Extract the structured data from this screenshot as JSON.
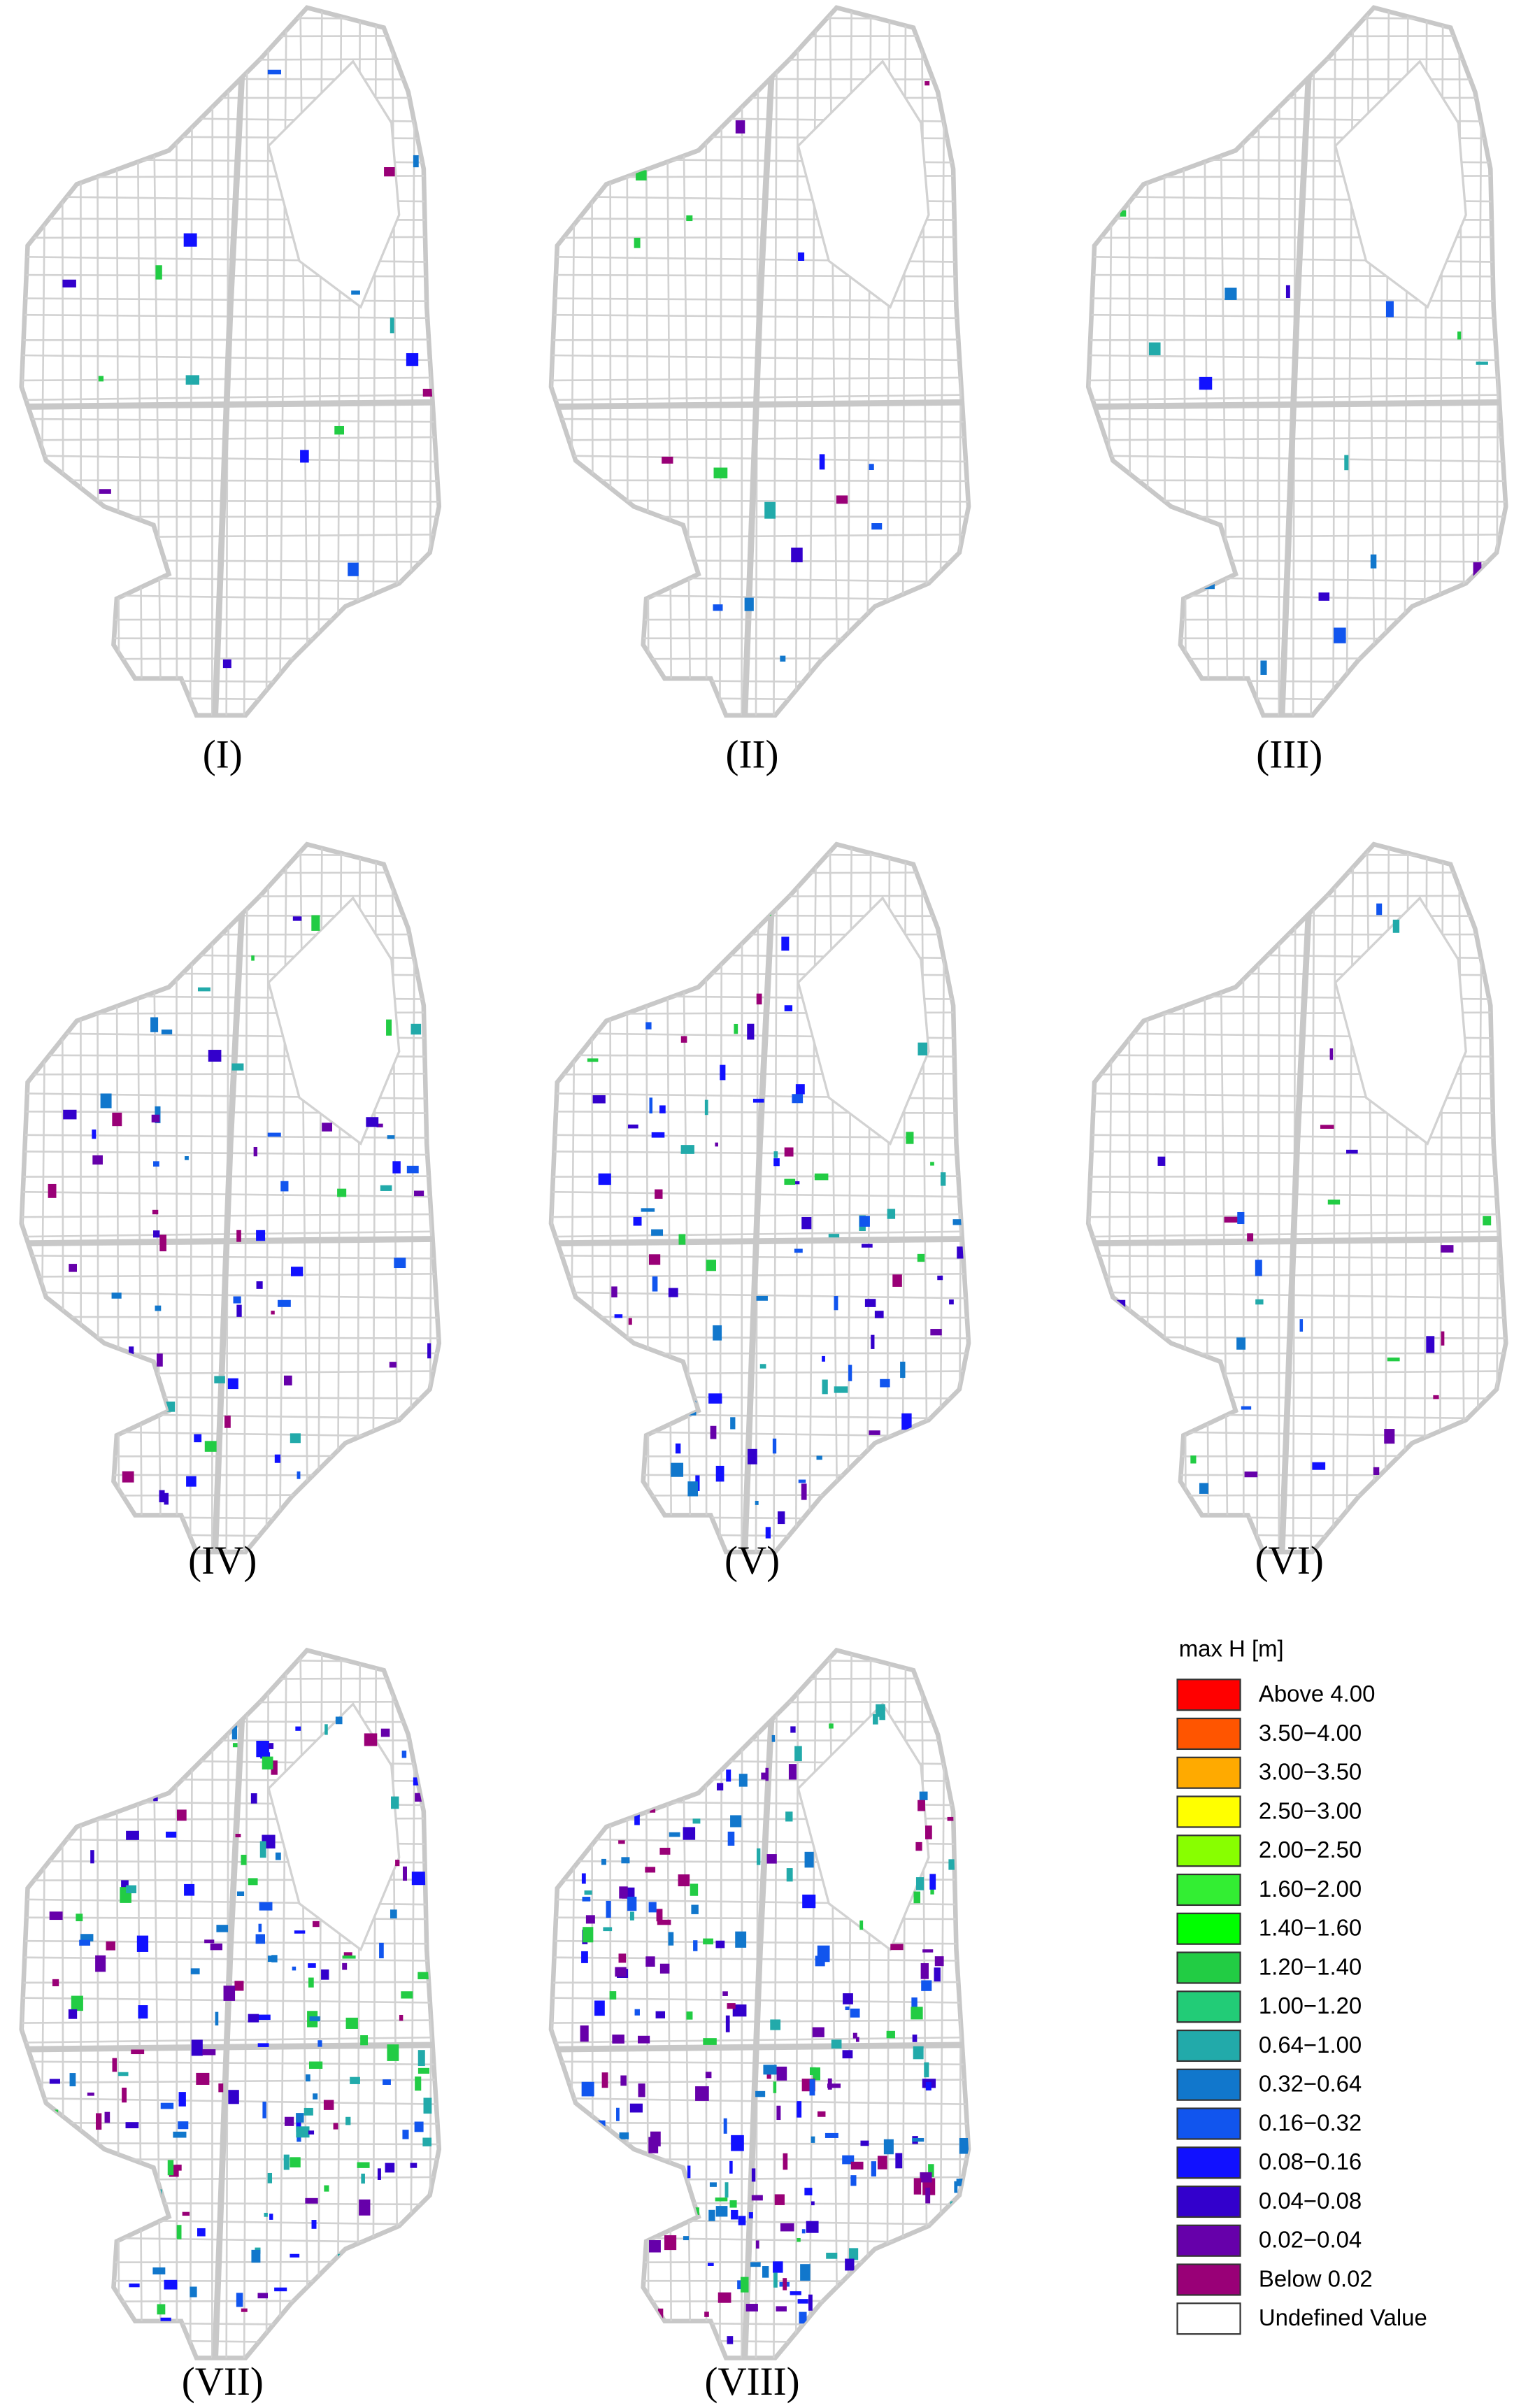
{
  "panels": [
    {
      "label": "(I)"
    },
    {
      "label": "(II)"
    },
    {
      "label": "(III)"
    },
    {
      "label": "(IV)"
    },
    {
      "label": "(V)"
    },
    {
      "label": "(VI)"
    },
    {
      "label": "(VII)"
    },
    {
      "label": "(VIII)"
    }
  ],
  "legend": {
    "title": "max H [m]",
    "items": [
      {
        "label": "Above 4.00",
        "color": "#ff0000"
      },
      {
        "label": "3.50−4.00",
        "color": "#ff5500"
      },
      {
        "label": "3.00−3.50",
        "color": "#ffaa00"
      },
      {
        "label": "2.50−3.00",
        "color": "#ffff00"
      },
      {
        "label": "2.00−2.50",
        "color": "#88ff00"
      },
      {
        "label": "1.60−2.00",
        "color": "#33ee33"
      },
      {
        "label": "1.40−1.60",
        "color": "#00ff00"
      },
      {
        "label": "1.20−1.40",
        "color": "#22cc44"
      },
      {
        "label": "1.00−1.20",
        "color": "#22cc77"
      },
      {
        "label": "0.64−1.00",
        "color": "#22aaaa"
      },
      {
        "label": "0.32−0.64",
        "color": "#1177cc"
      },
      {
        "label": "0.16−0.32",
        "color": "#1155ee"
      },
      {
        "label": "0.08−0.16",
        "color": "#1111ff"
      },
      {
        "label": "0.04−0.08",
        "color": "#3300cc"
      },
      {
        "label": "0.02−0.04",
        "color": "#6600aa"
      },
      {
        "label": "Below 0.02",
        "color": "#990077"
      },
      {
        "label": "Undefined Value",
        "color": "#ffffff"
      }
    ]
  }
}
